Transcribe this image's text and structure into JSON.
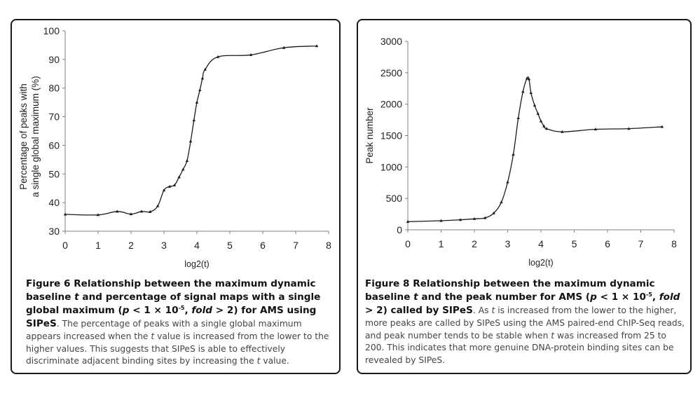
{
  "chart_data": [
    {
      "type": "line",
      "title": "",
      "xlabel": "log2(t)",
      "ylabel_lines": [
        "Percentage of peaks with",
        "a single global maximum (%)"
      ],
      "xlim": [
        0,
        8
      ],
      "ylim": [
        30,
        100
      ],
      "xticks": [
        "0",
        "1",
        "2",
        "3",
        "4",
        "5",
        "6",
        "7",
        "8"
      ],
      "yticks": [
        "30",
        "40",
        "50",
        "60",
        "70",
        "80",
        "90",
        "100"
      ],
      "grid": false,
      "marker": "triangle",
      "series": [
        {
          "name": "AMS",
          "x": [
            0,
            1,
            1.58,
            2,
            2.32,
            2.58,
            2.81,
            3,
            3.17,
            3.32,
            3.46,
            3.58,
            3.7,
            3.81,
            3.91,
            4,
            4.09,
            4.17,
            4.25,
            4.64,
            5.64,
            6.64,
            7.64
          ],
          "y": [
            35.9,
            35.7,
            36.9,
            36.0,
            36.9,
            36.8,
            38.8,
            44.3,
            45.6,
            46.1,
            48.9,
            51.6,
            54.6,
            61.4,
            68.8,
            75.0,
            79.3,
            83.4,
            86.5,
            90.9,
            91.6,
            94.1,
            94.7
          ]
        }
      ]
    },
    {
      "type": "line",
      "title": "",
      "xlabel": "log2(t)",
      "ylabel": "Peak number",
      "xlim": [
        0,
        8
      ],
      "ylim": [
        0,
        3000
      ],
      "xticks": [
        "0",
        "1",
        "2",
        "3",
        "4",
        "5",
        "6",
        "7",
        "8"
      ],
      "yticks": [
        "0",
        "500",
        "1000",
        "1500",
        "2000",
        "2500",
        "3000"
      ],
      "grid": false,
      "marker": "triangle",
      "series": [
        {
          "name": "AMS",
          "x": [
            0,
            1,
            1.58,
            2,
            2.32,
            2.58,
            2.81,
            3,
            3.17,
            3.32,
            3.46,
            3.58,
            3.64,
            3.7,
            3.81,
            3.91,
            4,
            4.09,
            4.17,
            4.64,
            5.64,
            6.64,
            7.64
          ],
          "y": [
            130,
            145,
            160,
            175,
            190,
            265,
            440,
            760,
            1200,
            1780,
            2200,
            2410,
            2400,
            2180,
            1980,
            1850,
            1730,
            1650,
            1610,
            1560,
            1600,
            1610,
            1640
          ]
        }
      ]
    }
  ],
  "figures": [
    {
      "title_prefix": "Figure 6",
      "title_parts": [
        {
          "text": " Relationship between the maximum dynamic baseline ",
          "style": "normal"
        },
        {
          "text": "t",
          "style": "italic"
        },
        {
          "text": " and percentage of signal maps with a single global maximum (",
          "style": "normal"
        },
        {
          "text": "p",
          "style": "italic"
        },
        {
          "text": " < 1 × 10",
          "style": "normal"
        },
        {
          "text": "-5",
          "style": "sup"
        },
        {
          "text": ", ",
          "style": "normal"
        },
        {
          "text": "fold",
          "style": "italic"
        },
        {
          "text": " > 2) for AMS using SIPeS",
          "style": "normal"
        }
      ],
      "body_parts": [
        {
          "text": ". The percentage of peaks with a single global maximum appears increased when the ",
          "style": "normal"
        },
        {
          "text": "t",
          "style": "italic"
        },
        {
          "text": " value is increased from the lower to the higher values. This suggests that SIPeS is able to effectively discriminate adjacent binding sites by increasing the ",
          "style": "normal"
        },
        {
          "text": "t",
          "style": "italic"
        },
        {
          "text": " value.",
          "style": "normal"
        }
      ]
    },
    {
      "title_prefix": "Figure 8",
      "title_parts": [
        {
          "text": " Relationship between the maximum dynamic baseline ",
          "style": "normal"
        },
        {
          "text": "t",
          "style": "italic"
        },
        {
          "text": " and the peak number for AMS (",
          "style": "normal"
        },
        {
          "text": "p",
          "style": "italic"
        },
        {
          "text": " < 1 × 10",
          "style": "normal"
        },
        {
          "text": "-5",
          "style": "sup"
        },
        {
          "text": ", ",
          "style": "normal"
        },
        {
          "text": "fold",
          "style": "italic"
        },
        {
          "text": " > 2) called by SIPeS",
          "style": "normal"
        }
      ],
      "body_parts": [
        {
          "text": ". As ",
          "style": "normal"
        },
        {
          "text": "t",
          "style": "italic"
        },
        {
          "text": " is increased from the lower to the higher, more peaks are called by SIPeS using the AMS paired-end ChIP-Seq reads, and peak number tends to be stable when ",
          "style": "normal"
        },
        {
          "text": "t",
          "style": "italic"
        },
        {
          "text": " was increased from 25 to 200. This indicates that more genuine DNA-protein binding sites can be revealed by SIPeS.",
          "style": "normal"
        }
      ]
    }
  ],
  "colors": {
    "line": "#1a1a1a",
    "axis": "#808080",
    "frame": "#1a1a1a",
    "caption_body": "#444444",
    "caption_title": "#111111"
  }
}
